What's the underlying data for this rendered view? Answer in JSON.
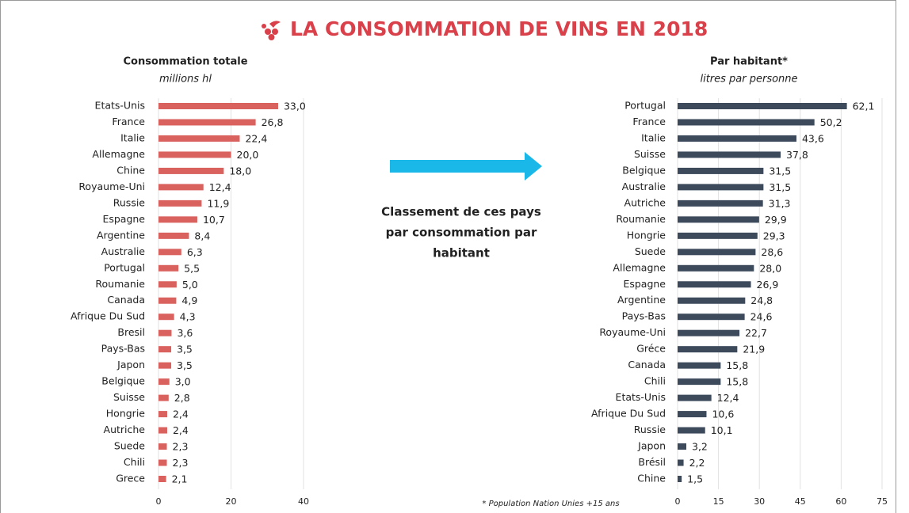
{
  "title": "LA CONSOMMATION DE VINS EN 2018",
  "annotation": [
    "Classement de ces pays",
    "par consommation par",
    "habitant"
  ],
  "footnote": "* Population Nation Unies +15 ans",
  "chart_data": [
    {
      "type": "bar",
      "orientation": "horizontal",
      "title": "Consommation totale",
      "subtitle": "millions hl",
      "categories": [
        "Etats-Unis",
        "France",
        "Italie",
        "Allemagne",
        "Chine",
        "Royaume-Uni",
        "Russie",
        "Espagne",
        "Argentine",
        "Australie",
        "Portugal",
        "Roumanie",
        "Canada",
        "Afrique Du Sud",
        "Bresil",
        "Pays-Bas",
        "Japon",
        "Belgique",
        "Suisse",
        "Hongrie",
        "Autriche",
        "Suede",
        "Chili",
        "Grece"
      ],
      "values": [
        33.0,
        26.8,
        22.4,
        20.0,
        18.0,
        12.4,
        11.9,
        10.7,
        8.4,
        6.3,
        5.5,
        5.0,
        4.9,
        4.3,
        3.6,
        3.5,
        3.5,
        3.0,
        2.8,
        2.4,
        2.4,
        2.3,
        2.3,
        2.1
      ],
      "value_labels": [
        "33,0",
        "26,8",
        "22,4",
        "20,0",
        "18,0",
        "12,4",
        "11,9",
        "10,7",
        "8,4",
        "6,3",
        "5,5",
        "5,0",
        "4,9",
        "4,3",
        "3,6",
        "3,5",
        "3,5",
        "3,0",
        "2,8",
        "2,4",
        "2,4",
        "2,3",
        "2,3",
        "2,1"
      ],
      "color": "#d9625f",
      "xlim": [
        0,
        40
      ],
      "xticks": [
        0,
        20,
        40
      ],
      "grid": true
    },
    {
      "type": "bar",
      "orientation": "horizontal",
      "title": "Par habitant*",
      "subtitle": "litres par personne",
      "categories": [
        "Portugal",
        "France",
        "Italie",
        "Suisse",
        "Belgique",
        "Australie",
        "Autriche",
        "Roumanie",
        "Hongrie",
        "Suede",
        "Allemagne",
        "Espagne",
        "Argentine",
        "Pays-Bas",
        "Royaume-Uni",
        "Gréce",
        "Canada",
        "Chili",
        "Etats-Unis",
        "Afrique Du Sud",
        "Russie",
        "Japon",
        "Brésil",
        "Chine"
      ],
      "values": [
        62.1,
        50.2,
        43.6,
        37.8,
        31.5,
        31.5,
        31.3,
        29.9,
        29.3,
        28.6,
        28.0,
        26.9,
        24.8,
        24.6,
        22.7,
        21.9,
        15.8,
        15.8,
        12.4,
        10.6,
        10.1,
        3.2,
        2.2,
        1.5
      ],
      "value_labels": [
        "62,1",
        "50,2",
        "43,6",
        "37,8",
        "31,5",
        "31,5",
        "31,3",
        "29,9",
        "29,3",
        "28,6",
        "28,0",
        "26,9",
        "24,8",
        "24,6",
        "22,7",
        "21,9",
        "15,8",
        "15,8",
        "12,4",
        "10,6",
        "10,1",
        "3,2",
        "2,2",
        "1,5"
      ],
      "color": "#3d4a5c",
      "xlim": [
        0,
        75
      ],
      "xticks": [
        0,
        15,
        30,
        45,
        60,
        75
      ],
      "grid": true
    }
  ]
}
